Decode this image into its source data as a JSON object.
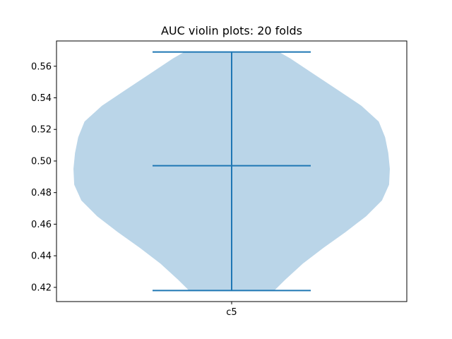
{
  "chart_data": {
    "type": "violin",
    "title": "AUC violin plots: 20 folds",
    "xlabel": "",
    "ylabel": "",
    "categories": [
      "c5"
    ],
    "ylim": [
      0.411,
      0.576
    ],
    "yticks": [
      0.42,
      0.44,
      0.46,
      0.48,
      0.5,
      0.52,
      0.54,
      0.56
    ],
    "ytick_labels": [
      "0.42",
      "0.44",
      "0.46",
      "0.48",
      "0.50",
      "0.52",
      "0.54",
      "0.56"
    ],
    "grid": false,
    "series": [
      {
        "category": "c5",
        "min": 0.418,
        "max": 0.569,
        "mean": 0.497,
        "density": [
          {
            "y": 0.418,
            "w": 0.27
          },
          {
            "y": 0.425,
            "w": 0.34
          },
          {
            "y": 0.435,
            "w": 0.45
          },
          {
            "y": 0.445,
            "w": 0.58
          },
          {
            "y": 0.455,
            "w": 0.72
          },
          {
            "y": 0.465,
            "w": 0.85
          },
          {
            "y": 0.475,
            "w": 0.95
          },
          {
            "y": 0.485,
            "w": 0.995
          },
          {
            "y": 0.495,
            "w": 1.0
          },
          {
            "y": 0.505,
            "w": 0.99
          },
          {
            "y": 0.515,
            "w": 0.97
          },
          {
            "y": 0.525,
            "w": 0.93
          },
          {
            "y": 0.535,
            "w": 0.82
          },
          {
            "y": 0.545,
            "w": 0.67
          },
          {
            "y": 0.555,
            "w": 0.52
          },
          {
            "y": 0.565,
            "w": 0.37
          },
          {
            "y": 0.569,
            "w": 0.3
          }
        ]
      }
    ],
    "colors": {
      "body": "#bad5e8",
      "lines": "#1f77b4",
      "axes": "#000000"
    }
  }
}
